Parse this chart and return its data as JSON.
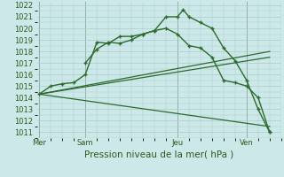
{
  "title": "Pression niveau de la mer( hPa )",
  "background_color": "#cce8e8",
  "grid_color": "#aacccc",
  "line_color": "#2d6a2d",
  "ylim": [
    1010.5,
    1022.3
  ],
  "yticks": [
    1011,
    1012,
    1013,
    1014,
    1015,
    1016,
    1017,
    1018,
    1019,
    1020,
    1021,
    1022
  ],
  "day_labels": [
    "Mer",
    "Sam",
    "Jeu",
    "Ven"
  ],
  "day_positions": [
    0,
    4,
    12,
    18
  ],
  "vline_positions": [
    0,
    4,
    12,
    18
  ],
  "xlim": [
    -0.2,
    21.0
  ],
  "series": [
    {
      "x": [
        0,
        1,
        2,
        3,
        4,
        5,
        6,
        7,
        8,
        9,
        10,
        11,
        12,
        12.5,
        13,
        14,
        15,
        16,
        17,
        18,
        19,
        20
      ],
      "y": [
        1014.3,
        1015.0,
        1015.2,
        1015.3,
        1016.0,
        1018.8,
        1018.7,
        1019.3,
        1019.3,
        1019.5,
        1019.8,
        1021.0,
        1021.0,
        1021.6,
        1021.0,
        1020.5,
        1020.0,
        1018.3,
        1017.2,
        1015.5,
        1013.0,
        1011.0
      ],
      "marker": true,
      "linewidth": 1.0
    },
    {
      "x": [
        4,
        5,
        6,
        7,
        8,
        9,
        10,
        11,
        12,
        13,
        14,
        15,
        16,
        17,
        18,
        19,
        20
      ],
      "y": [
        1017.0,
        1018.2,
        1018.8,
        1018.7,
        1019.0,
        1019.5,
        1019.8,
        1020.0,
        1019.5,
        1018.5,
        1018.3,
        1017.5,
        1015.5,
        1015.3,
        1015.0,
        1014.0,
        1011.0
      ],
      "marker": true,
      "linewidth": 1.0
    },
    {
      "x": [
        0,
        20
      ],
      "y": [
        1014.3,
        1018.0
      ],
      "marker": false,
      "linewidth": 0.9
    },
    {
      "x": [
        0,
        20
      ],
      "y": [
        1014.3,
        1017.5
      ],
      "marker": false,
      "linewidth": 0.9
    },
    {
      "x": [
        0,
        20
      ],
      "y": [
        1014.3,
        1011.5
      ],
      "marker": false,
      "linewidth": 0.9
    }
  ],
  "xlabel_fontsize": 7.5,
  "tick_fontsize": 6.0,
  "label_color": "#2d5a1b"
}
